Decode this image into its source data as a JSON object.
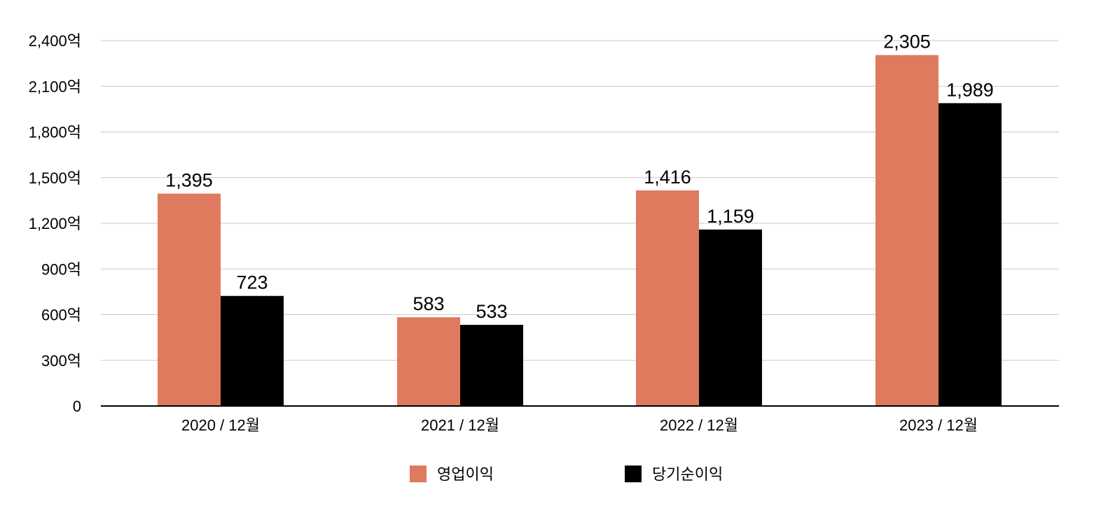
{
  "chart_data": {
    "type": "bar",
    "title": "",
    "xlabel": "",
    "ylabel": "",
    "categories": [
      "2020 / 12월",
      "2021 / 12월",
      "2022 / 12월",
      "2023 / 12월"
    ],
    "series": [
      {
        "name": "영업이익",
        "color": "#e07a5f",
        "values": [
          1395,
          583,
          1416,
          2305
        ],
        "labels": [
          "1,395",
          "583",
          "1,416",
          "2,305"
        ]
      },
      {
        "name": "당기순이익",
        "color": "#000000",
        "values": [
          723,
          533,
          1159,
          1989
        ],
        "labels": [
          "723",
          "533",
          "1,159",
          "1,989"
        ]
      }
    ],
    "ylim": [
      0,
      2400
    ],
    "yticks": [
      0,
      300,
      600,
      900,
      1200,
      1500,
      1800,
      2100,
      2400
    ],
    "ytick_labels": [
      "0",
      "300억",
      "600억",
      "900억",
      "1,200억",
      "1,500억",
      "1,800억",
      "2,100억",
      "2,400억"
    ],
    "grid": true,
    "legend_position": "bottom"
  }
}
